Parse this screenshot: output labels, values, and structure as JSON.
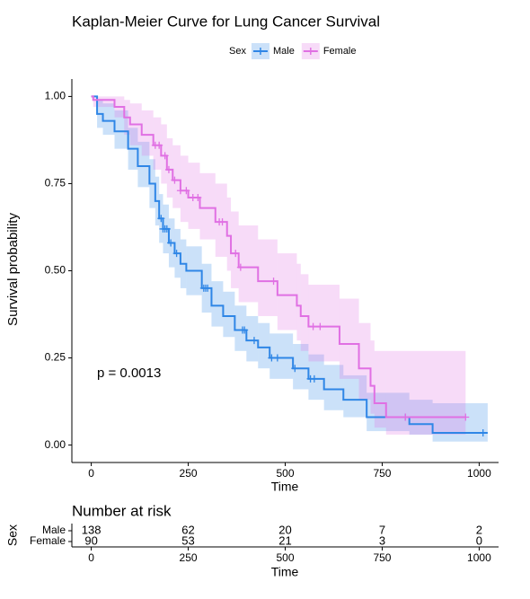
{
  "chart_data": [
    {
      "type": "km",
      "title": "Kaplan-Meier Curve for Lung Cancer Survival",
      "legend_title": "Sex",
      "xlabel": "Time",
      "ylabel": "Survival probability",
      "annotation": "p = 0.0013",
      "xlim": [
        -50,
        1050
      ],
      "ylim": [
        -0.05,
        1.05
      ],
      "xticks": [
        0,
        250,
        500,
        750,
        1000
      ],
      "yticks": [
        {
          "value": 0,
          "label": "0.00"
        },
        {
          "value": 0.25,
          "label": "0.25"
        },
        {
          "value": 0.5,
          "label": "0.50"
        },
        {
          "value": 0.75,
          "label": "0.75"
        },
        {
          "value": 1,
          "label": "1.00"
        }
      ],
      "series": [
        {
          "name": "Male",
          "color": "#2f86e6",
          "x": [
            0,
            15,
            30,
            60,
            95,
            120,
            150,
            165,
            175,
            185,
            200,
            215,
            230,
            245,
            285,
            310,
            340,
            370,
            400,
            430,
            460,
            520,
            560,
            600,
            650,
            710,
            820,
            880,
            1022
          ],
          "values": [
            1.0,
            0.95,
            0.93,
            0.9,
            0.85,
            0.8,
            0.75,
            0.7,
            0.65,
            0.62,
            0.58,
            0.55,
            0.52,
            0.5,
            0.45,
            0.4,
            0.37,
            0.33,
            0.3,
            0.28,
            0.25,
            0.22,
            0.19,
            0.16,
            0.13,
            0.08,
            0.06,
            0.035,
            0.035
          ],
          "upper": [
            1.0,
            0.99,
            0.98,
            0.96,
            0.91,
            0.87,
            0.82,
            0.77,
            0.72,
            0.69,
            0.65,
            0.62,
            0.59,
            0.57,
            0.52,
            0.47,
            0.44,
            0.4,
            0.37,
            0.35,
            0.32,
            0.29,
            0.26,
            0.23,
            0.2,
            0.15,
            0.13,
            0.12,
            0.12
          ],
          "lower": [
            1.0,
            0.91,
            0.89,
            0.85,
            0.79,
            0.74,
            0.68,
            0.63,
            0.58,
            0.55,
            0.51,
            0.48,
            0.45,
            0.43,
            0.38,
            0.34,
            0.31,
            0.27,
            0.24,
            0.22,
            0.19,
            0.16,
            0.13,
            0.1,
            0.08,
            0.04,
            0.03,
            0.01,
            0.01
          ],
          "censor": [
            180,
            185,
            190,
            195,
            205,
            220,
            290,
            295,
            300,
            390,
            395,
            420,
            465,
            480,
            525,
            565,
            575,
            810,
            1010
          ]
        },
        {
          "name": "Female",
          "color": "#e070e3",
          "x": [
            0,
            5,
            60,
            85,
            100,
            130,
            160,
            180,
            195,
            210,
            230,
            250,
            280,
            320,
            350,
            360,
            380,
            430,
            480,
            530,
            540,
            560,
            640,
            690,
            720,
            730,
            760,
            965
          ],
          "values": [
            1.0,
            0.99,
            0.97,
            0.94,
            0.92,
            0.89,
            0.86,
            0.83,
            0.79,
            0.76,
            0.73,
            0.71,
            0.68,
            0.64,
            0.6,
            0.55,
            0.51,
            0.47,
            0.43,
            0.4,
            0.37,
            0.34,
            0.29,
            0.22,
            0.17,
            0.12,
            0.08,
            0.08
          ],
          "upper": [
            1.0,
            1.0,
            1.0,
            0.99,
            0.98,
            0.96,
            0.94,
            0.92,
            0.88,
            0.86,
            0.83,
            0.81,
            0.78,
            0.75,
            0.71,
            0.67,
            0.63,
            0.59,
            0.55,
            0.52,
            0.49,
            0.46,
            0.42,
            0.35,
            0.3,
            0.27,
            0.27,
            0.27
          ],
          "lower": [
            1.0,
            0.97,
            0.94,
            0.89,
            0.86,
            0.83,
            0.79,
            0.75,
            0.71,
            0.68,
            0.64,
            0.62,
            0.59,
            0.54,
            0.5,
            0.45,
            0.41,
            0.37,
            0.33,
            0.3,
            0.27,
            0.24,
            0.19,
            0.13,
            0.09,
            0.05,
            0.03,
            0.03
          ],
          "censor": [
            165,
            175,
            190,
            200,
            215,
            230,
            245,
            262,
            275,
            330,
            338,
            372,
            385,
            470,
            572,
            590,
            810,
            965
          ]
        }
      ]
    },
    {
      "type": "risk-table",
      "title": "Number at risk",
      "xlabel": "Time",
      "ylabel": "Sex",
      "xlim": [
        -50,
        1050
      ],
      "xticks": [
        0,
        250,
        500,
        750,
        1000
      ],
      "series": [
        {
          "name": "Male",
          "color": "#2f86e6",
          "values": [
            138,
            62,
            20,
            7,
            2
          ]
        },
        {
          "name": "Female",
          "color": "#e070e3",
          "values": [
            90,
            53,
            21,
            3,
            0
          ]
        }
      ]
    }
  ]
}
